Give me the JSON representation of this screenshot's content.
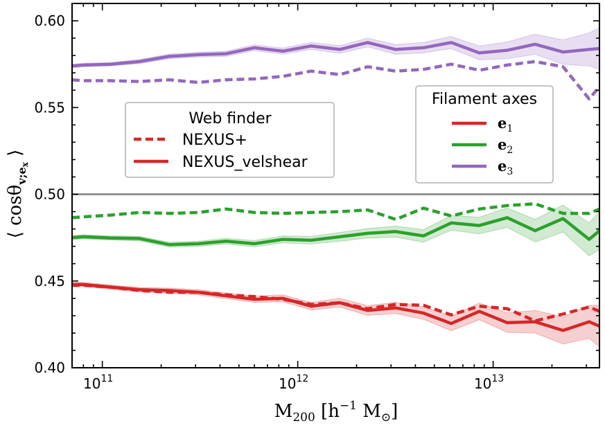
{
  "chart_data": {
    "type": "line",
    "xscale": "log",
    "xlim": [
      70000000000,
      35000000000000
    ],
    "ylim": [
      0.4,
      0.61
    ],
    "xlabel": "M",
    "xlabel_sub": "200",
    "xlabel_units": "[h",
    "xlabel_units_sup": "−1",
    "xlabel_units_tail": "M",
    "xlabel_units_sub": "⊙",
    "xlabel_units_close": "]",
    "ylabel": "⟨ cosθ",
    "ylabel_sub": "v;e",
    "ylabel_subsub": "x",
    "ylabel_close": "⟩",
    "reference_line": 0.5,
    "x_ticks": [
      {
        "value": 100000000000,
        "base": "10",
        "exp": "11"
      },
      {
        "value": 1000000000000,
        "base": "10",
        "exp": "12"
      },
      {
        "value": 10000000000000,
        "base": "10",
        "exp": "13"
      }
    ],
    "y_ticks": [
      {
        "value": 0.4,
        "label": "0.40"
      },
      {
        "value": 0.45,
        "label": "0.45"
      },
      {
        "value": 0.5,
        "label": "0.50"
      },
      {
        "value": 0.55,
        "label": "0.55"
      },
      {
        "value": 0.6,
        "label": "0.60"
      }
    ],
    "x": [
      70000000000,
      80000000000,
      110000000000,
      155000000000,
      220000000000,
      310000000000,
      430000000000,
      600000000000,
      840000000000,
      1170000000000,
      1640000000000,
      2280000000000,
      3170000000000,
      4400000000000,
      6100000000000,
      8500000000000,
      11800000000000,
      16400000000000,
      22800000000000,
      31000000000000,
      35000000000000
    ],
    "series": [
      {
        "name": "e3 NEXUS_velshear",
        "axis": "e3",
        "finder": "NEXUS_velshear",
        "color": "#9467bd",
        "dash": "solid",
        "band": true,
        "values": [
          0.574,
          0.5745,
          0.575,
          0.5765,
          0.5795,
          0.5805,
          0.581,
          0.5845,
          0.5825,
          0.5855,
          0.5835,
          0.5875,
          0.5835,
          0.5845,
          0.5875,
          0.5815,
          0.583,
          0.5865,
          0.582,
          0.5835,
          0.584
        ],
        "err": [
          0.001,
          0.001,
          0.001,
          0.0012,
          0.0013,
          0.0014,
          0.0015,
          0.0017,
          0.0018,
          0.002,
          0.0022,
          0.0025,
          0.0028,
          0.003,
          0.0035,
          0.004,
          0.0048,
          0.0058,
          0.007,
          0.0095,
          0.012
        ]
      },
      {
        "name": "e3 NEXUS+",
        "axis": "e3",
        "finder": "NEXUS+",
        "color": "#9467bd",
        "dash": "dashed",
        "band": false,
        "values": [
          0.566,
          0.5655,
          0.5655,
          0.565,
          0.566,
          0.5645,
          0.566,
          0.5665,
          0.568,
          0.571,
          0.569,
          0.5735,
          0.571,
          0.572,
          0.575,
          0.5715,
          0.5745,
          0.5765,
          0.5735,
          0.555,
          0.562
        ],
        "err": []
      },
      {
        "name": "e2 NEXUS_velshear",
        "axis": "e2",
        "finder": "NEXUS_velshear",
        "color": "#2ca02c",
        "dash": "solid",
        "band": true,
        "values": [
          0.475,
          0.4755,
          0.4748,
          0.4745,
          0.471,
          0.4715,
          0.473,
          0.4715,
          0.474,
          0.4735,
          0.4755,
          0.4775,
          0.4785,
          0.476,
          0.4835,
          0.482,
          0.4865,
          0.479,
          0.486,
          0.474,
          0.479
        ],
        "err": [
          0.0012,
          0.0012,
          0.0012,
          0.0013,
          0.0014,
          0.0015,
          0.0016,
          0.0018,
          0.002,
          0.0022,
          0.0025,
          0.0028,
          0.0032,
          0.0036,
          0.0042,
          0.0048,
          0.0056,
          0.0065,
          0.0078,
          0.0095,
          0.011
        ]
      },
      {
        "name": "e2 NEXUS+",
        "axis": "e2",
        "finder": "NEXUS+",
        "color": "#2ca02c",
        "dash": "dashed",
        "band": false,
        "values": [
          0.4865,
          0.487,
          0.488,
          0.4895,
          0.489,
          0.4895,
          0.4915,
          0.4895,
          0.489,
          0.4895,
          0.49,
          0.491,
          0.4855,
          0.492,
          0.4875,
          0.4915,
          0.4935,
          0.4945,
          0.489,
          0.489,
          0.4915
        ],
        "err": []
      },
      {
        "name": "e1 NEXUS_velshear",
        "axis": "e1",
        "finder": "NEXUS_velshear",
        "color": "#d62728",
        "dash": "solid",
        "band": true,
        "values": [
          0.448,
          0.448,
          0.4465,
          0.445,
          0.4445,
          0.4435,
          0.4415,
          0.4395,
          0.44,
          0.4355,
          0.4375,
          0.433,
          0.4345,
          0.4315,
          0.4255,
          0.4325,
          0.426,
          0.4265,
          0.4215,
          0.4265,
          0.424
        ],
        "err": [
          0.0012,
          0.0012,
          0.0012,
          0.0013,
          0.0014,
          0.0015,
          0.0016,
          0.0018,
          0.002,
          0.0022,
          0.0025,
          0.0028,
          0.0032,
          0.0036,
          0.0042,
          0.0048,
          0.0056,
          0.0065,
          0.0078,
          0.0095,
          0.012
        ]
      },
      {
        "name": "e1 NEXUS+",
        "axis": "e1",
        "finder": "NEXUS+",
        "color": "#d62728",
        "dash": "dashed",
        "band": false,
        "values": [
          0.4475,
          0.4475,
          0.4465,
          0.4445,
          0.4435,
          0.4435,
          0.442,
          0.441,
          0.4395,
          0.4365,
          0.4375,
          0.434,
          0.4365,
          0.436,
          0.4305,
          0.4355,
          0.434,
          0.427,
          0.431,
          0.435,
          0.4325
        ],
        "err": []
      }
    ],
    "legend_finder": {
      "title": "Web finder",
      "location": "center-left",
      "entries": [
        {
          "label": "NEXUS+",
          "dash": "dashed",
          "color": "#d62728"
        },
        {
          "label": "NEXUS_velshear",
          "dash": "solid",
          "color": "#d62728"
        }
      ]
    },
    "legend_axes": {
      "title": "Filament axes",
      "location": "upper-right",
      "entries": [
        {
          "symbol": "e",
          "sub": "1",
          "color": "#d62728"
        },
        {
          "symbol": "e",
          "sub": "2",
          "color": "#2ca02c"
        },
        {
          "symbol": "e",
          "sub": "3",
          "color": "#9467bd"
        }
      ]
    }
  }
}
